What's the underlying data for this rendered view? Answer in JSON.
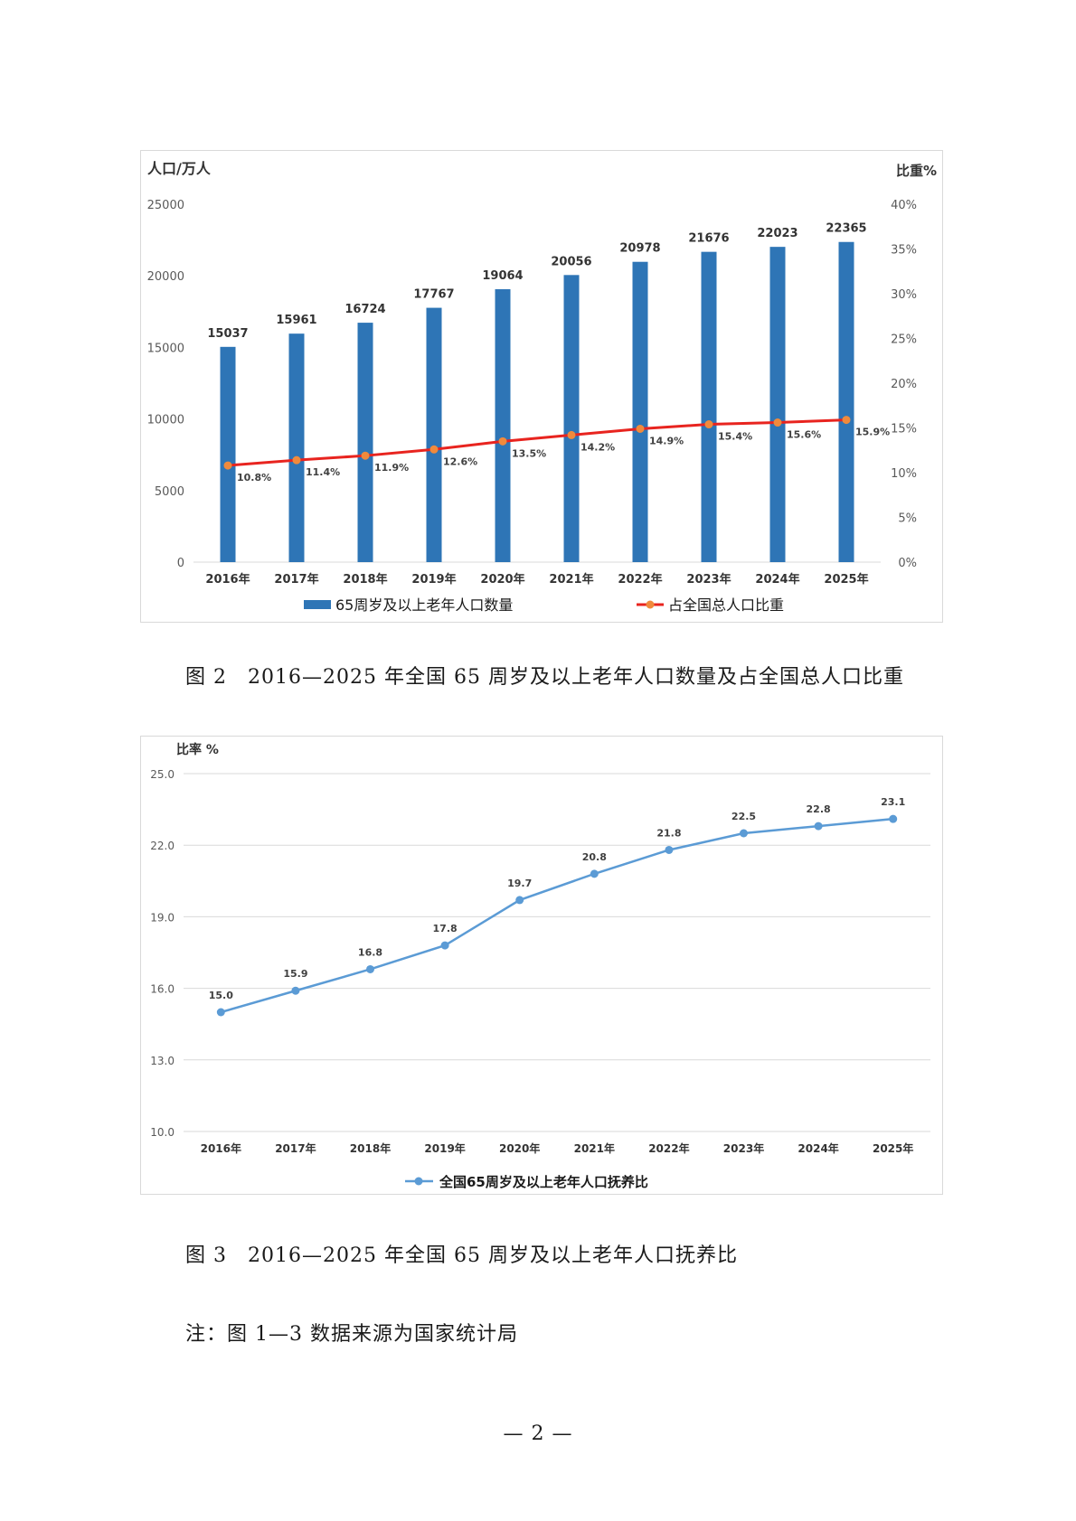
{
  "figure2": {
    "caption": "图 2　2016—2025 年全国 65 周岁及以上老年人口数量及占全国总人口比重",
    "chart_data": {
      "type": "bar",
      "categories": [
        "2016年",
        "2017年",
        "2018年",
        "2019年",
        "2020年",
        "2021年",
        "2022年",
        "2023年",
        "2024年",
        "2025年"
      ],
      "ylabel": "人口/万人",
      "y2label": "比重%",
      "ylim": [
        0,
        25000
      ],
      "y2lim": [
        0,
        40
      ],
      "yticks": [
        "0",
        "5000",
        "10000",
        "15000",
        "20000",
        "25000"
      ],
      "y2ticks": [
        "0%",
        "5%",
        "10%",
        "15%",
        "20%",
        "25%",
        "30%",
        "35%",
        "40%"
      ],
      "grid": false,
      "legend_placement": "bottom",
      "series": [
        {
          "name": "65周岁及以上老年人口数量",
          "type": "bar",
          "axis": "left",
          "color": "#2e75b6",
          "values": [
            15037,
            15961,
            16724,
            17767,
            19064,
            20056,
            20978,
            21676,
            22023,
            22365
          ],
          "labels": [
            "15037",
            "15961",
            "16724",
            "17767",
            "19064",
            "20056",
            "20978",
            "21676",
            "22023",
            "22365"
          ]
        },
        {
          "name": "占全国总人口比重",
          "type": "line",
          "axis": "right",
          "color": "#e8241f",
          "marker_color": "#f08a3c",
          "values": [
            10.8,
            11.4,
            11.9,
            12.6,
            13.5,
            14.2,
            14.9,
            15.4,
            15.6,
            15.9
          ],
          "labels": [
            "10.8%",
            "11.4%",
            "11.9%",
            "12.6%",
            "13.5%",
            "14.2%",
            "14.9%",
            "15.4%",
            "15.6%",
            "15.9%"
          ]
        }
      ]
    }
  },
  "figure3": {
    "caption": "图 3　2016—2025 年全国 65 周岁及以上老年人口抚养比",
    "chart_data": {
      "type": "line",
      "categories": [
        "2016年",
        "2017年",
        "2018年",
        "2019年",
        "2020年",
        "2021年",
        "2022年",
        "2023年",
        "2024年",
        "2025年"
      ],
      "ylabel": "比率 %",
      "ylim": [
        10,
        25
      ],
      "yticks": [
        "10.0",
        "13.0",
        "16.0",
        "19.0",
        "22.0",
        "25.0"
      ],
      "grid": true,
      "legend_placement": "bottom",
      "series": [
        {
          "name": "全国65周岁及以上老年人口抚养比",
          "color": "#5b9bd5",
          "values": [
            15.0,
            15.9,
            16.8,
            17.8,
            19.7,
            20.8,
            21.8,
            22.5,
            22.8,
            23.1
          ],
          "labels": [
            "15.0",
            "15.9",
            "16.8",
            "17.8",
            "19.7",
            "20.8",
            "21.8",
            "22.5",
            "22.8",
            "23.1"
          ]
        }
      ]
    }
  },
  "note": "注：图 1—3 数据来源为国家统计局",
  "page_number": "— 2 —"
}
